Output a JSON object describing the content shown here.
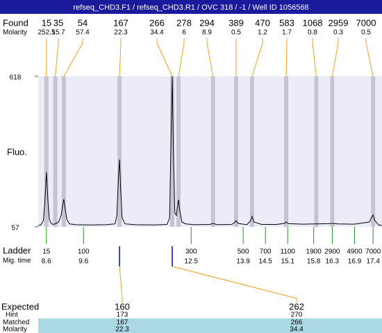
{
  "chart_data": {
    "type": "electropherogram",
    "title": "refseq_CHD3.F1 / refseq_CHD3.R1 / OVC 318 / -1 / Well ID 1056568",
    "y_label": "Fluo.",
    "xlim": [
      8.38,
      17.64
    ],
    "ylim": [
      57,
      618
    ],
    "yticks": [
      57,
      618
    ],
    "x": [
      8.38,
      8.45,
      8.52,
      8.56,
      8.6,
      8.64,
      8.68,
      8.74,
      8.8,
      8.86,
      8.93,
      9.0,
      9.04,
      9.07,
      9.1,
      9.15,
      9.22,
      9.4,
      9.8,
      10.2,
      10.45,
      10.5,
      10.54,
      10.57,
      10.6,
      10.64,
      10.72,
      11.0,
      11.5,
      11.85,
      11.92,
      11.96,
      11.99,
      12.02,
      12.06,
      12.1,
      12.14,
      12.16,
      12.19,
      12.25,
      12.35,
      12.6,
      13.0,
      13.09,
      13.2,
      13.6,
      13.68,
      13.71,
      13.76,
      14.0,
      14.1,
      14.14,
      14.19,
      14.4,
      14.8,
      15.02,
      15.06,
      15.12,
      15.5,
      15.87,
      16.2,
      16.3,
      16.45,
      16.9,
      17.3,
      17.37,
      17.4,
      17.45,
      17.55,
      17.64
    ],
    "series": [
      {
        "color": "#000000",
        "values": [
          62,
          64,
          80,
          150,
          261,
          160,
          85,
          68,
          66,
          70,
          75,
          100,
          140,
          160,
          130,
          85,
          68,
          65,
          64,
          65,
          68,
          100,
          240,
          308,
          200,
          90,
          68,
          65,
          64,
          66,
          90,
          400,
          618,
          350,
          110,
          100,
          140,
          158,
          120,
          75,
          68,
          65,
          66,
          70,
          65,
          66,
          75,
          80,
          70,
          65,
          80,
          96,
          75,
          66,
          66,
          70,
          75,
          69,
          67,
          68,
          69,
          70,
          68,
          67,
          75,
          95,
          101,
          80,
          64,
          62
        ]
      }
    ],
    "found": {
      "label": "Found",
      "molarity_label": "Molarity",
      "sizes": [
        15,
        35,
        54,
        167,
        266,
        278,
        294,
        389,
        470,
        583,
        1068,
        2959,
        7000
      ],
      "molarities": [
        252.5,
        15.7,
        57.4,
        22.3,
        34.4,
        6,
        8.9,
        0.5,
        1.2,
        1.7,
        0.8,
        0.3,
        0.5
      ],
      "times": [
        8.6,
        8.84,
        9.07,
        10.57,
        11.99,
        12.16,
        13.09,
        13.71,
        14.14,
        15.06,
        15.87,
        16.3,
        17.4
      ]
    },
    "ladder": {
      "label": "Ladder",
      "time_label": "Mig. time",
      "sizes": [
        15,
        100,
        300,
        500,
        700,
        1100,
        1900,
        2900,
        4900,
        7000
      ],
      "times": [
        8.6,
        9.6,
        12.5,
        13.9,
        14.5,
        15.1,
        15.8,
        16.3,
        16.9,
        17.4
      ]
    },
    "expected": {
      "labels": {
        "expected": "Expected",
        "hint": "Hint",
        "matched": "Matched",
        "molarity": "Molarity"
      },
      "expected": [
        160,
        262
      ],
      "hint": [
        173,
        270
      ],
      "matched": [
        167,
        266
      ],
      "molarity": [
        22.3,
        34.4
      ]
    }
  }
}
